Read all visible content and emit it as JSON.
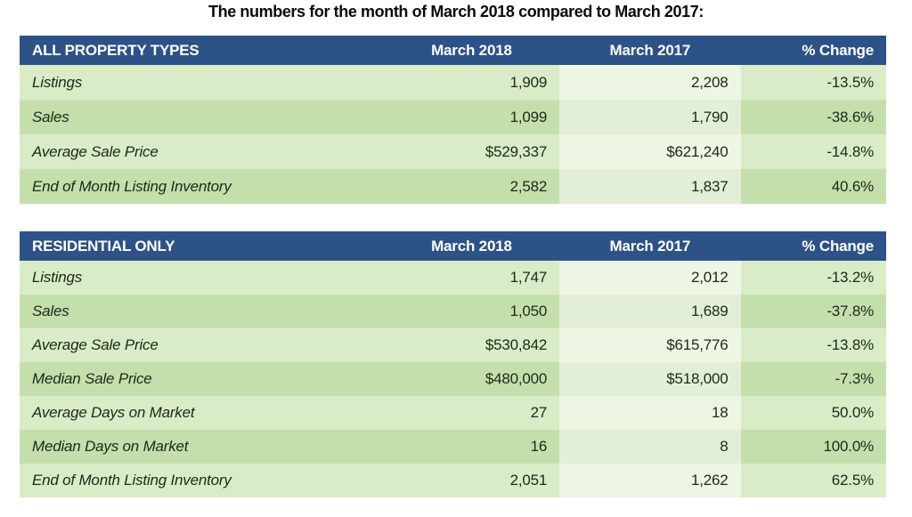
{
  "page": {
    "title": "The numbers for the month of March 2018 compared to March 2017:"
  },
  "colors": {
    "header_bg": "#2d5288",
    "row_light": "#d9ecc7",
    "row_dark": "#c4dfac",
    "header_text": "#ffffff",
    "body_text": "#202a1a"
  },
  "tables": [
    {
      "header": {
        "label": "ALL PROPERTY TYPES",
        "col_2018": "March 2018",
        "col_2017": "March 2017",
        "col_change": "% Change"
      },
      "rows": [
        {
          "label": "Listings",
          "march_2018": "1,909",
          "march_2017": "2,208",
          "pct_change": "-13.5%"
        },
        {
          "label": "Sales",
          "march_2018": "1,099",
          "march_2017": "1,790",
          "pct_change": "-38.6%"
        },
        {
          "label": "Average Sale Price",
          "march_2018": "$529,337",
          "march_2017": "$621,240",
          "pct_change": "-14.8%"
        },
        {
          "label": "End of Month Listing Inventory",
          "march_2018": "2,582",
          "march_2017": "1,837",
          "pct_change": "40.6%"
        }
      ]
    },
    {
      "header": {
        "label": "RESIDENTIAL ONLY",
        "col_2018": "March 2018",
        "col_2017": "March 2017",
        "col_change": "% Change"
      },
      "rows": [
        {
          "label": "Listings",
          "march_2018": "1,747",
          "march_2017": "2,012",
          "pct_change": "-13.2%"
        },
        {
          "label": "Sales",
          "march_2018": "1,050",
          "march_2017": "1,689",
          "pct_change": "-37.8%"
        },
        {
          "label": "Average Sale Price",
          "march_2018": "$530,842",
          "march_2017": "$615,776",
          "pct_change": "-13.8%"
        },
        {
          "label": "Median Sale Price",
          "march_2018": "$480,000",
          "march_2017": "$518,000",
          "pct_change": "-7.3%"
        },
        {
          "label": "Average Days on Market",
          "march_2018": "27",
          "march_2017": "18",
          "pct_change": "50.0%"
        },
        {
          "label": "Median Days on Market",
          "march_2018": "16",
          "march_2017": "8",
          "pct_change": "100.0%"
        },
        {
          "label": "End of Month Listing Inventory",
          "march_2018": "2,051",
          "march_2017": "1,262",
          "pct_change": "62.5%"
        }
      ]
    }
  ],
  "chart_data": [
    {
      "type": "table",
      "title": "ALL PROPERTY TYPES",
      "columns": [
        "March 2018",
        "March 2017",
        "% Change"
      ],
      "rows": [
        {
          "metric": "Listings",
          "march_2018": 1909,
          "march_2017": 2208,
          "pct_change": -13.5
        },
        {
          "metric": "Sales",
          "march_2018": 1099,
          "march_2017": 1790,
          "pct_change": -38.6
        },
        {
          "metric": "Average Sale Price",
          "march_2018": 529337,
          "march_2017": 621240,
          "pct_change": -14.8
        },
        {
          "metric": "End of Month Listing Inventory",
          "march_2018": 2582,
          "march_2017": 1837,
          "pct_change": 40.6
        }
      ]
    },
    {
      "type": "table",
      "title": "RESIDENTIAL ONLY",
      "columns": [
        "March 2018",
        "March 2017",
        "% Change"
      ],
      "rows": [
        {
          "metric": "Listings",
          "march_2018": 1747,
          "march_2017": 2012,
          "pct_change": -13.2
        },
        {
          "metric": "Sales",
          "march_2018": 1050,
          "march_2017": 1689,
          "pct_change": -37.8
        },
        {
          "metric": "Average Sale Price",
          "march_2018": 530842,
          "march_2017": 615776,
          "pct_change": -13.8
        },
        {
          "metric": "Median Sale Price",
          "march_2018": 480000,
          "march_2017": 518000,
          "pct_change": -7.3
        },
        {
          "metric": "Average Days on Market",
          "march_2018": 27,
          "march_2017": 18,
          "pct_change": 50.0
        },
        {
          "metric": "Median Days on Market",
          "march_2018": 16,
          "march_2017": 8,
          "pct_change": 100.0
        },
        {
          "metric": "End of Month Listing Inventory",
          "march_2018": 2051,
          "march_2017": 1262,
          "pct_change": 62.5
        }
      ]
    }
  ]
}
